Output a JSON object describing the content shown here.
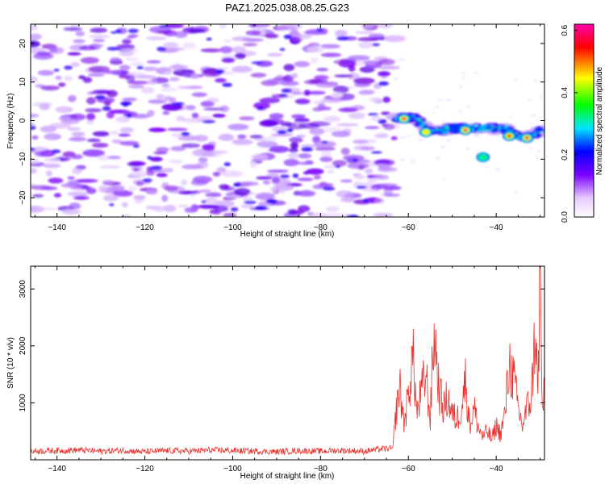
{
  "figure": {
    "title": "PAZ1.2025.038.08.25.G23"
  },
  "chart_data": [
    {
      "type": "heatmap",
      "title": "PAZ1.2025.038.08.25.G23",
      "xlabel": "Height of straight line (km)",
      "ylabel": "Frequency (Hz)",
      "xlim": [
        -146,
        -29
      ],
      "ylim": [
        -25,
        25
      ],
      "xticks": [
        -140,
        -120,
        -100,
        -80,
        -60,
        -40
      ],
      "yticks": [
        -20,
        -10,
        0,
        10,
        20
      ],
      "colorbar": {
        "label": "Normalized spectral amplitude",
        "range": [
          0,
          0.62
        ],
        "ticks": [
          0.0,
          0.2,
          0.4,
          0.6
        ],
        "tick_labels": [
          "0.0",
          "0.2",
          "0.4",
          "0.6"
        ],
        "colormap": [
          "#ffffff",
          "#7a00ff",
          "#0000ff",
          "#00e5ff",
          "#00ff00",
          "#ffff00",
          "#ff0000",
          "#ff00aa"
        ]
      },
      "noise_region_x": [
        -146,
        -63
      ],
      "signal_ridge": [
        {
          "x": -63,
          "y": 1
        },
        {
          "x": -58,
          "y": 0.5
        },
        {
          "x": -55,
          "y": -3
        },
        {
          "x": -50,
          "y": -2
        },
        {
          "x": -47,
          "y": -2
        },
        {
          "x": -43,
          "y": -2
        },
        {
          "x": -38,
          "y": -2
        },
        {
          "x": -35,
          "y": -4
        },
        {
          "x": -32,
          "y": -4
        },
        {
          "x": -29,
          "y": -2
        }
      ],
      "peaks": [
        {
          "x": -61,
          "y": 0.5,
          "amp": 0.6
        },
        {
          "x": -56,
          "y": -3,
          "amp": 0.45
        },
        {
          "x": -47,
          "y": -2.5,
          "amp": 0.6
        },
        {
          "x": -37,
          "y": -4,
          "amp": 0.55
        },
        {
          "x": -33,
          "y": -4.5,
          "amp": 0.6
        },
        {
          "x": -43,
          "y": -9.5,
          "amp": 0.3
        }
      ]
    },
    {
      "type": "line",
      "xlabel": "Height of straight line (km)",
      "ylabel": "SNR (10 * v/v)",
      "xlim": [
        -146,
        -29
      ],
      "ylim": [
        0,
        3400
      ],
      "xticks": [
        -140,
        -120,
        -100,
        -80,
        -60,
        -40
      ],
      "yticks": [
        1000,
        2000,
        3000
      ],
      "color": "#e8322e",
      "series": [
        {
          "x": [
            -146,
            -140,
            -135,
            -130,
            -125,
            -120,
            -115,
            -110,
            -105,
            -100,
            -95,
            -90,
            -85,
            -80,
            -75,
            -70,
            -66,
            -63.5,
            -63,
            -62,
            -61,
            -60,
            -59,
            -58,
            -57,
            -56,
            -55,
            -54.5,
            -54,
            -53,
            -52,
            -51,
            -50,
            -49,
            -48,
            -47,
            -46,
            -45,
            -44,
            -43,
            -42,
            -41,
            -40,
            -39,
            -38,
            -37,
            -36,
            -35,
            -34,
            -33,
            -32,
            -31,
            -30.5,
            -30,
            -29.5,
            -29
          ],
          "y": [
            150,
            160,
            170,
            150,
            165,
            140,
            160,
            150,
            170,
            160,
            150,
            140,
            160,
            150,
            165,
            150,
            190,
            200,
            700,
            1300,
            650,
            1100,
            1850,
            800,
            1200,
            1500,
            700,
            1750,
            2200,
            1200,
            900,
            1100,
            800,
            700,
            900,
            1400,
            600,
            900,
            550,
            400,
            500,
            350,
            600,
            450,
            800,
            1700,
            1400,
            900,
            600,
            900,
            1100,
            2400,
            1000,
            3350,
            800,
            1300
          ]
        }
      ]
    }
  ]
}
